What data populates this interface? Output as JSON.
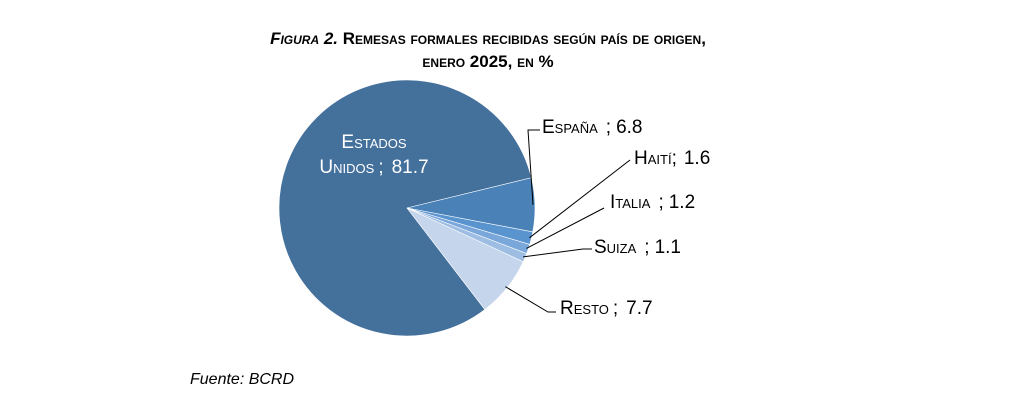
{
  "chart_data": {
    "type": "pie",
    "title_lead": "Figura 2.",
    "title_rest": "Remesas formales recibidas según país de origen,",
    "title_line2": "enero 2025, en %",
    "slices": [
      {
        "label": "Estados Unidos",
        "value": 81.7,
        "color": "#44709c"
      },
      {
        "label": "España",
        "value": 6.8,
        "color": "#4a82b8"
      },
      {
        "label": "Haití",
        "value": 1.6,
        "color": "#5a94cf"
      },
      {
        "label": "Italia",
        "value": 1.2,
        "color": "#7aa7d9"
      },
      {
        "label": "Suiza",
        "value": 1.1,
        "color": "#9dbde3"
      },
      {
        "label": "Resto",
        "value": 7.7,
        "color": "#c5d5ec"
      }
    ],
    "label_texts": [
      {
        "name": "Estados",
        "sep": "",
        "value": ""
      },
      {
        "name": "Unidos",
        "sep": ";",
        "value": "81.7"
      },
      {
        "name": "España",
        "sep": ";",
        "value": "6.8"
      },
      {
        "name": "Haití",
        "sep": ";",
        "value": "1.6"
      },
      {
        "name": "Italia",
        "sep": ";",
        "value": "1.2"
      },
      {
        "name": "Suiza",
        "sep": ";",
        "value": "1.1"
      },
      {
        "name": "Resto",
        "sep": ";",
        "value": "7.7"
      }
    ],
    "source": "Fuente: BCRD"
  }
}
